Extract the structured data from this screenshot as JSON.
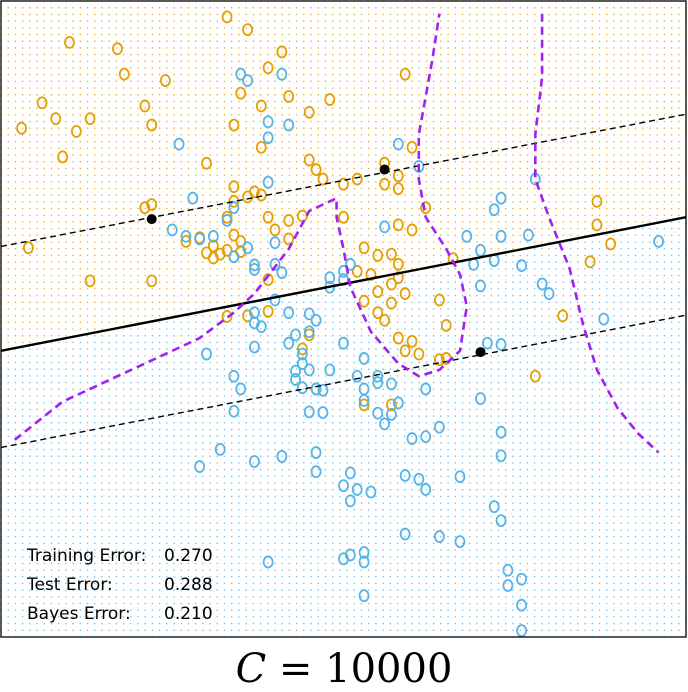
{
  "caption": {
    "variable": "C",
    "equals": "=",
    "value": "10000"
  },
  "stats": [
    {
      "label": "Training Error:",
      "value": "0.270"
    },
    {
      "label": "Test Error:",
      "value": "0.288"
    },
    {
      "label": "Bayes Error:",
      "value": "0.210"
    }
  ],
  "colors": {
    "orange": "#E69F00",
    "blue": "#56B4E9",
    "bayes": "#A020F0",
    "boundary": "#000000",
    "support": "#000000"
  },
  "chart_data": {
    "type": "scatter",
    "title": "",
    "xlabel": "",
    "ylabel": "",
    "xlim": [
      0,
      1
    ],
    "ylim": [
      0,
      1
    ],
    "grid": false,
    "classes": [
      {
        "name": "",
        "color": "#E69F00",
        "points": [
          [
            0.33,
            0.975
          ],
          [
            0.36,
            0.955
          ],
          [
            0.1,
            0.935
          ],
          [
            0.17,
            0.925
          ],
          [
            0.41,
            0.92
          ],
          [
            0.18,
            0.885
          ],
          [
            0.24,
            0.875
          ],
          [
            0.39,
            0.895
          ],
          [
            0.59,
            0.885
          ],
          [
            0.35,
            0.855
          ],
          [
            0.42,
            0.85
          ],
          [
            0.06,
            0.84
          ],
          [
            0.21,
            0.835
          ],
          [
            0.38,
            0.835
          ],
          [
            0.48,
            0.845
          ],
          [
            0.08,
            0.815
          ],
          [
            0.13,
            0.815
          ],
          [
            0.22,
            0.805
          ],
          [
            0.45,
            0.825
          ],
          [
            0.03,
            0.8
          ],
          [
            0.11,
            0.795
          ],
          [
            0.34,
            0.805
          ],
          [
            0.6,
            0.77
          ],
          [
            0.38,
            0.77
          ],
          [
            0.09,
            0.755
          ],
          [
            0.3,
            0.745
          ],
          [
            0.45,
            0.75
          ],
          [
            0.56,
            0.745
          ],
          [
            0.58,
            0.725
          ],
          [
            0.46,
            0.735
          ],
          [
            0.47,
            0.72
          ],
          [
            0.52,
            0.72
          ],
          [
            0.56,
            0.712
          ],
          [
            0.58,
            0.705
          ],
          [
            0.5,
            0.712
          ],
          [
            0.34,
            0.708
          ],
          [
            0.37,
            0.7
          ],
          [
            0.38,
            0.695
          ],
          [
            0.21,
            0.675
          ],
          [
            0.34,
            0.685
          ],
          [
            0.36,
            0.692
          ],
          [
            0.62,
            0.675
          ],
          [
            0.87,
            0.685
          ],
          [
            0.44,
            0.662
          ],
          [
            0.39,
            0.66
          ],
          [
            0.33,
            0.66
          ],
          [
            0.42,
            0.655
          ],
          [
            0.22,
            0.68
          ],
          [
            0.5,
            0.66
          ],
          [
            0.58,
            0.648
          ],
          [
            0.6,
            0.64
          ],
          [
            0.4,
            0.64
          ],
          [
            0.29,
            0.628
          ],
          [
            0.34,
            0.632
          ],
          [
            0.35,
            0.622
          ],
          [
            0.42,
            0.626
          ],
          [
            0.27,
            0.622
          ],
          [
            0.31,
            0.615
          ],
          [
            0.87,
            0.648
          ],
          [
            0.89,
            0.618
          ],
          [
            0.04,
            0.612
          ],
          [
            0.33,
            0.608
          ],
          [
            0.53,
            0.612
          ],
          [
            0.55,
            0.6
          ],
          [
            0.57,
            0.602
          ],
          [
            0.58,
            0.586
          ],
          [
            0.3,
            0.604
          ],
          [
            0.31,
            0.596
          ],
          [
            0.32,
            0.602
          ],
          [
            0.34,
            0.598
          ],
          [
            0.35,
            0.606
          ],
          [
            0.86,
            0.59
          ],
          [
            0.66,
            0.595
          ],
          [
            0.52,
            0.575
          ],
          [
            0.54,
            0.57
          ],
          [
            0.58,
            0.565
          ],
          [
            0.39,
            0.562
          ],
          [
            0.57,
            0.555
          ],
          [
            0.22,
            0.56
          ],
          [
            0.13,
            0.56
          ],
          [
            0.55,
            0.543
          ],
          [
            0.59,
            0.54
          ],
          [
            0.53,
            0.528
          ],
          [
            0.57,
            0.525
          ],
          [
            0.64,
            0.53
          ],
          [
            0.55,
            0.51
          ],
          [
            0.39,
            0.512
          ],
          [
            0.33,
            0.504
          ],
          [
            0.36,
            0.505
          ],
          [
            0.56,
            0.498
          ],
          [
            0.65,
            0.49
          ],
          [
            0.82,
            0.505
          ],
          [
            0.45,
            0.475
          ],
          [
            0.58,
            0.47
          ],
          [
            0.6,
            0.465
          ],
          [
            0.44,
            0.453
          ],
          [
            0.59,
            0.45
          ],
          [
            0.61,
            0.445
          ],
          [
            0.65,
            0.438
          ],
          [
            0.64,
            0.436
          ],
          [
            0.78,
            0.41
          ],
          [
            0.46,
            0.39
          ],
          [
            0.53,
            0.365
          ],
          [
            0.57,
            0.365
          ]
        ]
      },
      {
        "name": "",
        "color": "#56B4E9",
        "points": [
          [
            0.35,
            0.885
          ],
          [
            0.41,
            0.885
          ],
          [
            0.36,
            0.875
          ],
          [
            0.39,
            0.81
          ],
          [
            0.42,
            0.805
          ],
          [
            0.39,
            0.785
          ],
          [
            0.26,
            0.775
          ],
          [
            0.58,
            0.775
          ],
          [
            0.61,
            0.74
          ],
          [
            0.39,
            0.715
          ],
          [
            0.78,
            0.72
          ],
          [
            0.28,
            0.69
          ],
          [
            0.73,
            0.69
          ],
          [
            0.34,
            0.675
          ],
          [
            0.72,
            0.672
          ],
          [
            0.33,
            0.655
          ],
          [
            0.56,
            0.645
          ],
          [
            0.25,
            0.64
          ],
          [
            0.27,
            0.63
          ],
          [
            0.29,
            0.626
          ],
          [
            0.31,
            0.63
          ],
          [
            0.68,
            0.63
          ],
          [
            0.73,
            0.63
          ],
          [
            0.77,
            0.632
          ],
          [
            0.96,
            0.622
          ],
          [
            0.4,
            0.62
          ],
          [
            0.36,
            0.612
          ],
          [
            0.7,
            0.608
          ],
          [
            0.72,
            0.592
          ],
          [
            0.34,
            0.598
          ],
          [
            0.37,
            0.585
          ],
          [
            0.4,
            0.586
          ],
          [
            0.51,
            0.586
          ],
          [
            0.69,
            0.586
          ],
          [
            0.76,
            0.584
          ],
          [
            0.37,
            0.578
          ],
          [
            0.5,
            0.575
          ],
          [
            0.41,
            0.573
          ],
          [
            0.5,
            0.562
          ],
          [
            0.48,
            0.565
          ],
          [
            0.79,
            0.555
          ],
          [
            0.7,
            0.552
          ],
          [
            0.48,
            0.55
          ],
          [
            0.8,
            0.54
          ],
          [
            0.4,
            0.53
          ],
          [
            0.37,
            0.51
          ],
          [
            0.42,
            0.51
          ],
          [
            0.45,
            0.508
          ],
          [
            0.37,
            0.494
          ],
          [
            0.38,
            0.488
          ],
          [
            0.46,
            0.498
          ],
          [
            0.45,
            0.48
          ],
          [
            0.88,
            0.5
          ],
          [
            0.43,
            0.475
          ],
          [
            0.42,
            0.462
          ],
          [
            0.5,
            0.462
          ],
          [
            0.71,
            0.462
          ],
          [
            0.73,
            0.46
          ],
          [
            0.37,
            0.456
          ],
          [
            0.3,
            0.445
          ],
          [
            0.44,
            0.445
          ],
          [
            0.53,
            0.438
          ],
          [
            0.44,
            0.43
          ],
          [
            0.45,
            0.42
          ],
          [
            0.43,
            0.418
          ],
          [
            0.34,
            0.41
          ],
          [
            0.52,
            0.41
          ],
          [
            0.55,
            0.41
          ],
          [
            0.55,
            0.4
          ],
          [
            0.57,
            0.398
          ],
          [
            0.48,
            0.42
          ],
          [
            0.43,
            0.405
          ],
          [
            0.35,
            0.39
          ],
          [
            0.44,
            0.392
          ],
          [
            0.46,
            0.39
          ],
          [
            0.47,
            0.388
          ],
          [
            0.53,
            0.39
          ],
          [
            0.62,
            0.39
          ],
          [
            0.53,
            0.372
          ],
          [
            0.58,
            0.368
          ],
          [
            0.7,
            0.375
          ],
          [
            0.34,
            0.355
          ],
          [
            0.45,
            0.354
          ],
          [
            0.47,
            0.353
          ],
          [
            0.55,
            0.352
          ],
          [
            0.57,
            0.35
          ],
          [
            0.56,
            0.335
          ],
          [
            0.64,
            0.33
          ],
          [
            0.62,
            0.315
          ],
          [
            0.73,
            0.322
          ],
          [
            0.6,
            0.312
          ],
          [
            0.32,
            0.295
          ],
          [
            0.46,
            0.29
          ],
          [
            0.41,
            0.284
          ],
          [
            0.37,
            0.276
          ],
          [
            0.29,
            0.268
          ],
          [
            0.73,
            0.285
          ],
          [
            0.46,
            0.26
          ],
          [
            0.51,
            0.258
          ],
          [
            0.59,
            0.254
          ],
          [
            0.67,
            0.252
          ],
          [
            0.61,
            0.248
          ],
          [
            0.62,
            0.232
          ],
          [
            0.5,
            0.238
          ],
          [
            0.52,
            0.232
          ],
          [
            0.54,
            0.228
          ],
          [
            0.51,
            0.214
          ],
          [
            0.72,
            0.205
          ],
          [
            0.73,
            0.183
          ],
          [
            0.59,
            0.162
          ],
          [
            0.53,
            0.133
          ],
          [
            0.51,
            0.129
          ],
          [
            0.5,
            0.123
          ],
          [
            0.39,
            0.118
          ],
          [
            0.53,
            0.118
          ],
          [
            0.64,
            0.158
          ],
          [
            0.67,
            0.15
          ],
          [
            0.74,
            0.105
          ],
          [
            0.76,
            0.091
          ],
          [
            0.74,
            0.081
          ],
          [
            0.76,
            0.05
          ],
          [
            0.53,
            0.065
          ],
          [
            0.76,
            0.01
          ]
        ]
      }
    ],
    "support_vectors": [
      [
        0.22,
        0.657
      ],
      [
        0.56,
        0.735
      ],
      [
        0.7,
        0.448
      ]
    ],
    "decision_boundary": [
      [
        0.0,
        0.45
      ],
      [
        1.0,
        0.66
      ]
    ],
    "margins": [
      [
        [
          0.0,
          0.614
        ],
        [
          1.0,
          0.822
        ]
      ],
      [
        [
          0.0,
          0.298
        ],
        [
          1.0,
          0.506
        ]
      ]
    ],
    "bayes_boundary": [
      [
        [
          0.02,
          0.31
        ],
        [
          0.09,
          0.37
        ],
        [
          0.16,
          0.405
        ],
        [
          0.23,
          0.44
        ],
        [
          0.29,
          0.47
        ],
        [
          0.34,
          0.51
        ],
        [
          0.37,
          0.54
        ],
        [
          0.42,
          0.61
        ],
        [
          0.45,
          0.67
        ],
        [
          0.49,
          0.69
        ],
        [
          0.49,
          0.66
        ],
        [
          0.5,
          0.61
        ],
        [
          0.51,
          0.55
        ],
        [
          0.54,
          0.48
        ],
        [
          0.58,
          0.43
        ],
        [
          0.61,
          0.41
        ],
        [
          0.64,
          0.42
        ],
        [
          0.67,
          0.45
        ],
        [
          0.68,
          0.52
        ],
        [
          0.67,
          0.57
        ],
        [
          0.65,
          0.61
        ],
        [
          0.62,
          0.66
        ],
        [
          0.61,
          0.72
        ],
        [
          0.61,
          0.79
        ],
        [
          0.62,
          0.85
        ],
        [
          0.63,
          0.91
        ],
        [
          0.64,
          0.98
        ]
      ],
      [
        [
          0.79,
          0.98
        ],
        [
          0.79,
          0.88
        ],
        [
          0.78,
          0.79
        ],
        [
          0.78,
          0.72
        ],
        [
          0.8,
          0.66
        ],
        [
          0.83,
          0.58
        ],
        [
          0.85,
          0.49
        ],
        [
          0.87,
          0.42
        ],
        [
          0.9,
          0.36
        ],
        [
          0.93,
          0.32
        ],
        [
          0.96,
          0.29
        ]
      ]
    ]
  }
}
